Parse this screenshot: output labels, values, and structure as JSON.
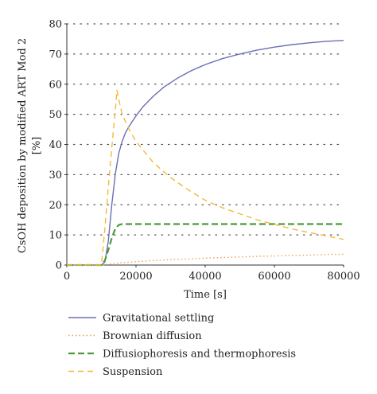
{
  "chart_data": {
    "type": "line",
    "xlabel": "Time [s]",
    "ylabel": "CsOH deposition by modified ART Mod 2",
    "ylabel_unit": "[%]",
    "xlim": [
      0,
      80000
    ],
    "ylim": [
      0,
      80
    ],
    "xticks": [
      "0",
      "20000",
      "40000",
      "60000",
      "80000"
    ],
    "yticks": [
      "0",
      "10",
      "20",
      "30",
      "40",
      "50",
      "60",
      "70",
      "80"
    ],
    "grid": "horizontal dotted",
    "legend_position": "below",
    "series": [
      {
        "name": "Gravitational settling",
        "color": "#6b6fb5",
        "dash": "solid",
        "x": [
          0,
          10000,
          11000,
          12000,
          13000,
          14000,
          15000,
          16000,
          17000,
          18000,
          20000,
          22000,
          25000,
          28000,
          32000,
          36000,
          40000,
          45000,
          50000,
          55000,
          60000,
          65000,
          70000,
          75000,
          80000
        ],
        "y": [
          0,
          0,
          1,
          8,
          20,
          30,
          37,
          41,
          44,
          46,
          49.5,
          52.5,
          56,
          59,
          62,
          64.5,
          66.5,
          68.5,
          70,
          71.3,
          72.3,
          73.1,
          73.7,
          74.2,
          74.5
        ]
      },
      {
        "name": "Brownian diffusion",
        "color": "#f0a050",
        "dash": "dotted",
        "x": [
          0,
          10000,
          12000,
          15000,
          20000,
          25000,
          30000,
          35000,
          40000,
          45000,
          50000,
          55000,
          60000,
          65000,
          70000,
          75000,
          80000
        ],
        "y": [
          0,
          0,
          0.3,
          0.7,
          1.1,
          1.5,
          1.8,
          2.0,
          2.3,
          2.5,
          2.7,
          2.9,
          3.0,
          3.2,
          3.3,
          3.5,
          3.6
        ]
      },
      {
        "name": "Diffusiophoresis and thermophoresis",
        "color": "#4a9a3a",
        "dash": "dashed",
        "x": [
          0,
          10000,
          11000,
          12000,
          13000,
          14000,
          15000,
          16000,
          20000,
          40000,
          60000,
          80000
        ],
        "y": [
          0,
          0,
          1.5,
          5,
          9,
          12,
          13.3,
          13.6,
          13.6,
          13.6,
          13.6,
          13.6
        ]
      },
      {
        "name": "Suspension",
        "color": "#f5b83a",
        "dash": "longdash",
        "x": [
          0,
          10000,
          11000,
          12000,
          13000,
          14000,
          14500,
          15000,
          16000,
          18000,
          20000,
          25000,
          30000,
          35000,
          40000,
          45000,
          50000,
          55000,
          60000,
          65000,
          70000,
          75000,
          80000
        ],
        "y": [
          0,
          0,
          12,
          26,
          39,
          51,
          58,
          55,
          50,
          45,
          41,
          34,
          29,
          25,
          21.5,
          19,
          17,
          15,
          13.5,
          12,
          10.8,
          9.7,
          8.5
        ]
      }
    ]
  }
}
